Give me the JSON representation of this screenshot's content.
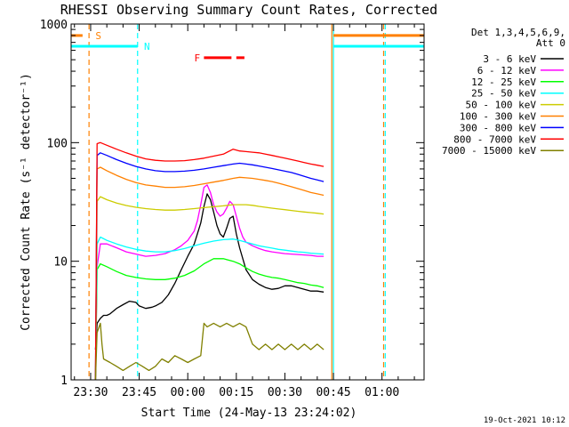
{
  "chart_data": {
    "type": "line",
    "title": "RHESSI Observing Summary Count Rates, Corrected",
    "xlabel": "Start Time (24-May-13 23:24:02)",
    "ylabel": "Corrected Count Rate (s⁻¹ detector⁻¹)",
    "yscale": "log",
    "ylim": [
      1,
      1000
    ],
    "xlim_minutes": [
      -6.03,
      103.0
    ],
    "grid": false,
    "legend_position": "top-right",
    "x_ticks": [
      {
        "min": 0,
        "label": "23:30"
      },
      {
        "min": 15,
        "label": "23:45"
      },
      {
        "min": 30,
        "label": "00:00"
      },
      {
        "min": 45,
        "label": "00:15"
      },
      {
        "min": 60,
        "label": "00:30"
      },
      {
        "min": 75,
        "label": "00:45"
      },
      {
        "min": 90,
        "label": "01:00"
      }
    ],
    "y_ticks": [
      {
        "value": 1,
        "label": "1"
      },
      {
        "value": 10,
        "label": "10"
      },
      {
        "value": 100,
        "label": "100"
      },
      {
        "value": 1000,
        "label": "1000"
      }
    ],
    "legend_header": [
      "Det 1,3,4,5,6,9,",
      "Att 0"
    ],
    "series": [
      {
        "name": "3 - 6 keV",
        "color": "#000000",
        "x": [
          1.5,
          2,
          3,
          4,
          5,
          6,
          8,
          10,
          12,
          14,
          15,
          17,
          19,
          20,
          22,
          24,
          26,
          28,
          30,
          32,
          34,
          35,
          36,
          37,
          38,
          39,
          40,
          41,
          42,
          43,
          44,
          45,
          46,
          47,
          48,
          50,
          52,
          54,
          56,
          58,
          60,
          62,
          64,
          66,
          68,
          70,
          72
        ],
        "y": [
          1.8,
          3,
          3.3,
          3.5,
          3.5,
          3.6,
          4.0,
          4.3,
          4.6,
          4.5,
          4.2,
          4.0,
          4.1,
          4.2,
          4.5,
          5.2,
          6.5,
          8.5,
          11,
          14,
          21,
          29,
          37,
          33,
          26,
          20,
          17,
          16,
          19,
          23,
          24,
          17,
          13,
          10.5,
          8.5,
          7,
          6.4,
          6.0,
          5.8,
          5.9,
          6.2,
          6.2,
          6.0,
          5.8,
          5.6,
          5.6,
          5.5
        ]
      },
      {
        "name": "6 - 12 keV",
        "color": "#ff00ff",
        "x": [
          1.5,
          2,
          3,
          5,
          8,
          11,
          14,
          17,
          20,
          23,
          26,
          28,
          30,
          32,
          33,
          34,
          35,
          36,
          37,
          38,
          39,
          40,
          41,
          42,
          43,
          44,
          45,
          46,
          47,
          48,
          50,
          52,
          54,
          56,
          58,
          60,
          62,
          64,
          66,
          68,
          70,
          72
        ],
        "y": [
          1,
          9,
          14,
          14,
          13,
          12,
          11.5,
          11,
          11.2,
          11.6,
          12.5,
          13.5,
          15,
          18,
          22,
          30,
          42,
          44,
          38,
          30,
          26,
          24,
          25,
          28,
          32,
          30,
          24,
          19,
          16,
          14.5,
          13.5,
          12.8,
          12.3,
          12.0,
          11.8,
          11.6,
          11.5,
          11.4,
          11.3,
          11.2,
          11.0,
          11.0
        ]
      },
      {
        "name": "12 - 25 keV",
        "color": "#00ff00",
        "x": [
          1.5,
          2,
          3,
          5,
          8,
          11,
          14,
          17,
          20,
          23,
          26,
          29,
          32,
          35,
          38,
          41,
          44,
          46,
          48,
          50,
          52,
          54,
          56,
          58,
          60,
          62,
          64,
          66,
          68,
          70,
          72
        ],
        "y": [
          1,
          8.5,
          9.5,
          9.0,
          8.2,
          7.6,
          7.3,
          7.1,
          7.0,
          7.0,
          7.2,
          7.6,
          8.3,
          9.5,
          10.5,
          10.5,
          10.0,
          9.5,
          8.8,
          8.2,
          7.8,
          7.5,
          7.3,
          7.2,
          7.0,
          6.8,
          6.6,
          6.5,
          6.3,
          6.2,
          6.0
        ]
      },
      {
        "name": "25 - 50 keV",
        "color": "#00ffff",
        "x": [
          1.5,
          2,
          3,
          5,
          8,
          11,
          14,
          17,
          20,
          23,
          26,
          29,
          32,
          35,
          38,
          41,
          44,
          46,
          48,
          50,
          52,
          54,
          56,
          58,
          60,
          62,
          64,
          66,
          68,
          70,
          72
        ],
        "y": [
          1,
          14,
          16,
          15,
          14,
          13.2,
          12.6,
          12.2,
          12.0,
          12.0,
          12.3,
          12.8,
          13.5,
          14.2,
          14.8,
          15.2,
          15.4,
          15.0,
          14.5,
          14.0,
          13.5,
          13.2,
          12.9,
          12.6,
          12.4,
          12.2,
          12.0,
          11.9,
          11.7,
          11.6,
          11.5
        ]
      },
      {
        "name": "50 - 100 keV",
        "color": "#cccc00",
        "x": [
          1.5,
          2,
          3,
          5,
          8,
          11,
          14,
          17,
          20,
          23,
          26,
          29,
          32,
          35,
          38,
          41,
          44,
          46,
          48,
          50,
          52,
          54,
          56,
          58,
          60,
          62,
          64,
          66,
          68,
          70,
          72
        ],
        "y": [
          1,
          32,
          35,
          33,
          31,
          29.5,
          28.5,
          27.8,
          27.3,
          27.0,
          27.0,
          27.3,
          27.8,
          28.3,
          28.8,
          29.3,
          30.0,
          30.0,
          30.0,
          29.6,
          29.0,
          28.5,
          28.0,
          27.6,
          27.2,
          26.8,
          26.4,
          26.0,
          25.7,
          25.4,
          25.0
        ]
      },
      {
        "name": "100 - 300 keV",
        "color": "#ff8000",
        "x": [
          1.5,
          2,
          3,
          5,
          8,
          11,
          14,
          17,
          20,
          23,
          26,
          29,
          32,
          35,
          38,
          41,
          44,
          46,
          48,
          50,
          52,
          54,
          56,
          58,
          60,
          62,
          64,
          66,
          68,
          70,
          72
        ],
        "y": [
          1,
          60,
          62,
          58,
          53,
          49,
          46,
          44,
          43,
          42,
          42,
          42.5,
          43.5,
          45,
          46.5,
          48,
          50,
          51,
          50.5,
          50,
          49,
          48,
          47,
          45.5,
          44,
          42.5,
          41,
          39.5,
          38,
          37,
          36
        ]
      },
      {
        "name": "300 - 800 keV",
        "color": "#0000ff",
        "x": [
          1.5,
          2,
          3,
          5,
          8,
          11,
          14,
          17,
          20,
          23,
          26,
          29,
          32,
          35,
          38,
          41,
          44,
          46,
          48,
          50,
          52,
          54,
          56,
          58,
          60,
          62,
          64,
          66,
          68,
          70,
          72
        ],
        "y": [
          1,
          78,
          82,
          78,
          72,
          67,
          63,
          60,
          58,
          57,
          57,
          57.5,
          58.5,
          60,
          62,
          64,
          66,
          67,
          66,
          65,
          63.5,
          62,
          60.5,
          59,
          57.5,
          56,
          54,
          52,
          50,
          48.5,
          47
        ]
      },
      {
        "name": "800 - 7000 keV",
        "color": "#ff0000",
        "x": [
          1.5,
          2,
          3,
          5,
          8,
          11,
          14,
          17,
          20,
          23,
          26,
          29,
          32,
          35,
          38,
          41,
          44,
          46,
          48,
          50,
          52,
          54,
          56,
          58,
          60,
          62,
          64,
          66,
          68,
          70,
          72
        ],
        "y": [
          1,
          98,
          100,
          95,
          88,
          82,
          77,
          73,
          71,
          70,
          70,
          70.5,
          72,
          74,
          77,
          80,
          88,
          85,
          84,
          83,
          82,
          80,
          78,
          76,
          74,
          72,
          70,
          68,
          66,
          64.5,
          63
        ]
      },
      {
        "name": "7000 - 15000 keV",
        "color": "#808000",
        "x": [
          1.5,
          2,
          3,
          3.5,
          4,
          6,
          8,
          10,
          12,
          14,
          16,
          18,
          20,
          22,
          24,
          26,
          28,
          30,
          32,
          34,
          35,
          36,
          38,
          40,
          42,
          44,
          46,
          48,
          50,
          52,
          54,
          56,
          58,
          60,
          62,
          64,
          66,
          68,
          70,
          72
        ],
        "y": [
          1.0,
          2.5,
          3.0,
          2.0,
          1.5,
          1.4,
          1.3,
          1.2,
          1.3,
          1.4,
          1.3,
          1.2,
          1.3,
          1.5,
          1.4,
          1.6,
          1.5,
          1.4,
          1.5,
          1.6,
          3.0,
          2.8,
          3.0,
          2.8,
          3.0,
          2.8,
          3.0,
          2.8,
          2.0,
          1.8,
          2.0,
          1.8,
          2.0,
          1.8,
          2.0,
          1.8,
          2.0,
          1.8,
          2.0,
          1.8
        ]
      }
    ],
    "annotations": [
      {
        "label": "S",
        "color": "#ff8000",
        "y": 800
      },
      {
        "label": "N",
        "color": "#00ffff",
        "y": 650
      },
      {
        "label": "F",
        "color": "#ff0000",
        "y": 520
      }
    ],
    "vertical_markers": [
      {
        "x": -0.5,
        "color": "#ff8000",
        "style": "dashed"
      },
      {
        "x": 14.5,
        "color": "#00ffff",
        "style": "dashed"
      },
      {
        "x": 74.5,
        "color": "#ff8000",
        "style": "solid"
      },
      {
        "x": 75.0,
        "color": "#00ffff",
        "style": "solid"
      },
      {
        "x": 90.5,
        "color": "#ff8000",
        "style": "dashed"
      },
      {
        "x": 91.0,
        "color": "#00ffff",
        "style": "dashed"
      }
    ],
    "segments": [
      {
        "color": "#ff8000",
        "x": [
          -6.0,
          -2.5
        ],
        "y": 800
      },
      {
        "color": "#00ffff",
        "x": [
          -6.0,
          14.5
        ],
        "y": 650
      },
      {
        "color": "#ff0000",
        "x": [
          35.0,
          43.5
        ],
        "y": 520
      },
      {
        "color": "#ff0000",
        "x": [
          45.0,
          47.5
        ],
        "y": 520
      },
      {
        "color": "#ff8000",
        "x": [
          75.0,
          103.0
        ],
        "y": 800
      },
      {
        "color": "#00ffff",
        "x": [
          75.0,
          103.0
        ],
        "y": 650
      }
    ]
  },
  "footer": {
    "timestamp": "19-Oct-2021 10:12"
  }
}
